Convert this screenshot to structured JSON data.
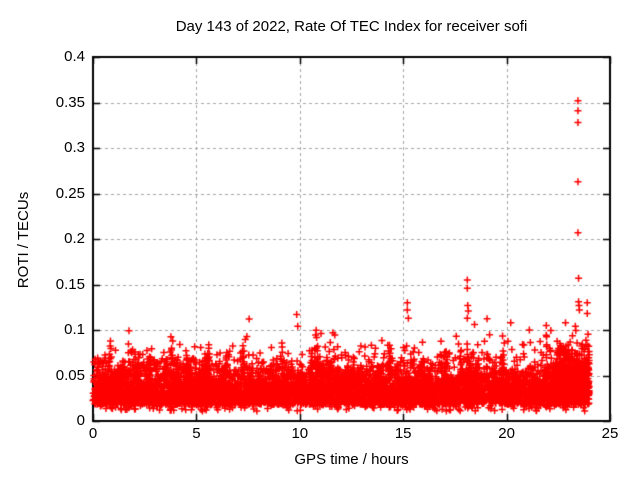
{
  "chart_data": {
    "type": "scatter",
    "title": "Day 143 of 2022, Rate Of TEC Index for receiver sofi",
    "xlabel": "GPS time / hours",
    "ylabel": "ROTI / TECUs",
    "xlim": [
      0,
      25
    ],
    "ylim": [
      0,
      0.4
    ],
    "x_tick_values": [
      0,
      5,
      10,
      15,
      20,
      25
    ],
    "x_tick_labels": [
      "0",
      "5",
      "10",
      "15",
      "20",
      "25"
    ],
    "y_tick_values": [
      0,
      0.05,
      0.1,
      0.15,
      0.2,
      0.25,
      0.3,
      0.35,
      0.4
    ],
    "y_tick_labels": [
      "0",
      "0.05",
      "0.1",
      "0.15",
      "0.2",
      "0.25",
      "0.3",
      "0.35",
      "0.4"
    ],
    "grid": {
      "style": "dashed",
      "color": "#a6a6a6"
    },
    "frame_color": "#000000",
    "legend": "none",
    "series": [
      {
        "name": "ROTI",
        "marker": "plus",
        "color": "#ff0000",
        "marker_size_px": 7,
        "x_range_hours": [
          0,
          24
        ],
        "band_summary": "dense noise band between ~0.01 and ~0.09 TECU spanning all 24 hours, spiky upper edge",
        "generation": {
          "seed": 143,
          "n_band_points": 6000,
          "band_components": [
            {
              "weight": 0.68,
              "base": 0.018,
              "sigma": 0.016
            },
            {
              "weight": 0.32,
              "base": 0.03,
              "sigma": 0.021
            }
          ],
          "band_y_cap": 0.105,
          "band_y_floor": 0.01,
          "bottom_fuzz": {
            "prob": 0.04,
            "min": 0.011,
            "range": 0.012
          },
          "spike_clusters": {
            "count": 52,
            "y_start": 0.048,
            "peak_base": 0.06,
            "peak_sigma": 0.02,
            "peak_cap": 0.118,
            "points_min": 4,
            "points_max": 12,
            "x_jitter": 0.04
          },
          "end_cluster": {
            "x0": 22.6,
            "x1": 24.0,
            "n": 450,
            "base": 0.028,
            "sigma": 0.024,
            "cap": 0.105
          }
        },
        "outliers": [
          [
            7.55,
            0.112
          ],
          [
            9.85,
            0.117
          ],
          [
            9.9,
            0.104
          ],
          [
            11.6,
            0.097
          ],
          [
            15.2,
            0.13
          ],
          [
            15.2,
            0.122
          ],
          [
            15.25,
            0.113
          ],
          [
            18.1,
            0.155
          ],
          [
            18.1,
            0.146
          ],
          [
            18.12,
            0.127
          ],
          [
            18.15,
            0.121
          ],
          [
            18.1,
            0.113
          ],
          [
            18.45,
            0.106
          ],
          [
            20.2,
            0.108
          ],
          [
            21.1,
            0.1
          ],
          [
            22.85,
            0.108
          ],
          [
            23.45,
            0.352
          ],
          [
            23.45,
            0.341
          ],
          [
            23.45,
            0.328
          ],
          [
            23.45,
            0.263
          ],
          [
            23.45,
            0.207
          ],
          [
            23.48,
            0.157
          ],
          [
            23.48,
            0.131
          ],
          [
            23.5,
            0.127
          ],
          [
            23.52,
            0.122
          ],
          [
            23.9,
            0.13
          ],
          [
            23.9,
            0.118
          ]
        ]
      }
    ]
  }
}
